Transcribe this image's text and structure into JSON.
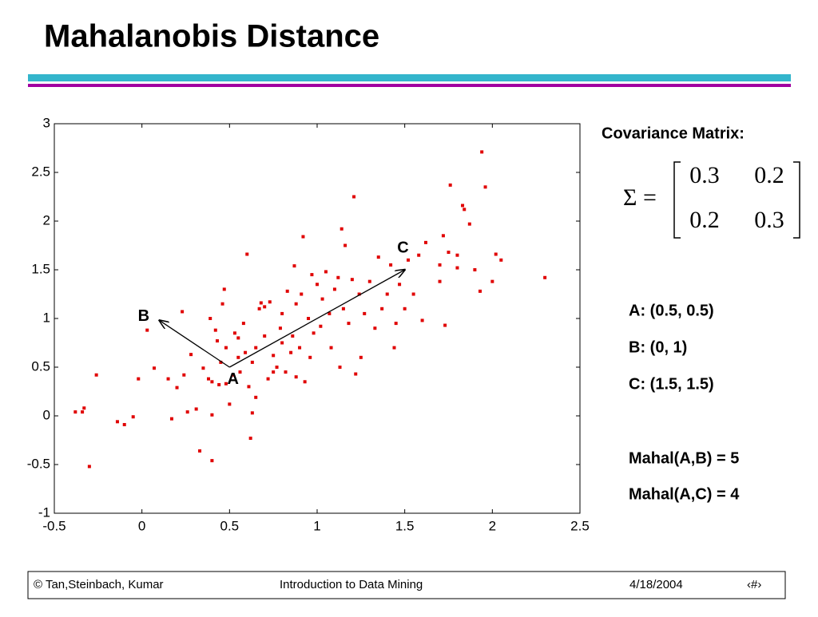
{
  "title": "Mahalanobis Distance",
  "chart_data": {
    "type": "scatter",
    "color": "#e00000",
    "x": [
      -0.38,
      -0.34,
      -0.33,
      -0.3,
      -0.26,
      -0.14,
      -0.1,
      -0.05,
      -0.02,
      0.03,
      0.07,
      0.15,
      0.17,
      0.2,
      0.23,
      0.24,
      0.26,
      0.28,
      0.31,
      0.33,
      0.35,
      0.38,
      0.39,
      0.4,
      0.4,
      0.42,
      0.43,
      0.44,
      0.45,
      0.46,
      0.47,
      0.48,
      0.48,
      0.5,
      0.52,
      0.53,
      0.55,
      0.56,
      0.58,
      0.59,
      0.6,
      0.61,
      0.62,
      0.63,
      0.63,
      0.65,
      0.65,
      0.67,
      0.68,
      0.7,
      0.72,
      0.73,
      0.75,
      0.75,
      0.77,
      0.79,
      0.8,
      0.8,
      0.82,
      0.83,
      0.85,
      0.86,
      0.87,
      0.88,
      0.88,
      0.9,
      0.91,
      0.92,
      0.93,
      0.95,
      0.96,
      0.97,
      0.98,
      1.0,
      1.02,
      1.03,
      1.05,
      1.07,
      1.08,
      1.1,
      1.12,
      1.13,
      1.14,
      1.15,
      1.16,
      1.18,
      1.2,
      1.21,
      1.22,
      1.24,
      1.27,
      1.3,
      1.33,
      1.35,
      1.37,
      1.4,
      1.42,
      1.44,
      1.45,
      1.47,
      1.5,
      1.52,
      1.55,
      1.58,
      1.6,
      1.62,
      1.7,
      1.72,
      1.73,
      1.75,
      1.76,
      1.8,
      1.83,
      1.84,
      1.87,
      1.9,
      1.93,
      1.94,
      1.96,
      2.0,
      2.02,
      2.05,
      2.3,
      1.7,
      1.8,
      0.4,
      0.55,
      1.25,
      0.7
    ],
    "y": [
      0.04,
      0.04,
      0.08,
      -0.52,
      0.42,
      -0.06,
      -0.09,
      -0.01,
      0.38,
      0.88,
      0.49,
      0.38,
      -0.03,
      0.29,
      1.07,
      0.42,
      0.04,
      0.63,
      0.07,
      -0.36,
      0.49,
      0.38,
      1.0,
      -0.46,
      0.01,
      0.88,
      0.77,
      0.32,
      0.55,
      1.15,
      1.3,
      0.7,
      0.33,
      0.12,
      0.42,
      0.85,
      0.6,
      0.45,
      0.95,
      0.65,
      1.66,
      0.3,
      -0.23,
      0.03,
      0.55,
      0.7,
      0.19,
      1.1,
      1.16,
      0.82,
      0.38,
      1.17,
      0.45,
      0.62,
      0.5,
      0.9,
      1.05,
      0.75,
      0.45,
      1.28,
      0.65,
      0.82,
      1.54,
      1.15,
      0.4,
      0.7,
      1.25,
      1.84,
      0.35,
      1.0,
      0.6,
      1.45,
      0.85,
      1.35,
      0.92,
      1.2,
      1.48,
      1.05,
      0.7,
      1.3,
      1.42,
      0.5,
      1.92,
      1.1,
      1.75,
      0.95,
      1.4,
      2.25,
      0.43,
      1.25,
      1.05,
      1.38,
      0.9,
      1.63,
      1.1,
      1.25,
      1.55,
      0.7,
      0.95,
      1.35,
      1.1,
      1.6,
      1.25,
      1.65,
      0.98,
      1.78,
      1.38,
      1.85,
      0.93,
      1.68,
      2.37,
      1.65,
      2.16,
      2.12,
      1.97,
      1.5,
      1.28,
      2.71,
      2.35,
      1.38,
      1.66,
      1.6,
      1.42,
      1.55,
      1.52,
      0.35,
      0.8,
      0.6,
      1.12
    ],
    "xlim": [
      -0.5,
      2.5
    ],
    "ylim": [
      -1,
      3
    ],
    "xticks": [
      -0.5,
      0,
      0.5,
      1,
      1.5,
      2,
      2.5
    ],
    "yticks": [
      -1,
      -0.5,
      0,
      0.5,
      1,
      1.5,
      2,
      2.5,
      3
    ],
    "arrows": [
      {
        "from": [
          0.5,
          0.5
        ],
        "to": [
          0.1,
          0.98
        ]
      },
      {
        "from": [
          0.5,
          0.5
        ],
        "to": [
          1.5,
          1.5
        ]
      }
    ],
    "annotations": [
      {
        "text": "A",
        "x": 0.52,
        "y": 0.37
      },
      {
        "text": "B",
        "x": 0.01,
        "y": 1.02
      },
      {
        "text": "C",
        "x": 1.49,
        "y": 1.72
      }
    ]
  },
  "side": {
    "heading": "Covariance Matrix:",
    "sigma": "Σ =",
    "matrix": [
      [
        0.3,
        0.2
      ],
      [
        0.2,
        0.3
      ]
    ],
    "points": [
      "A: (0.5, 0.5)",
      "B: (0, 1)",
      "C: (1.5, 1.5)"
    ],
    "results": [
      "Mahal(A,B) = 5",
      "Mahal(A,C) = 4"
    ]
  },
  "footer": {
    "left": "© Tan,Steinbach, Kumar",
    "center": "Introduction to Data Mining",
    "date": "4/18/2004",
    "page": "‹#›"
  }
}
